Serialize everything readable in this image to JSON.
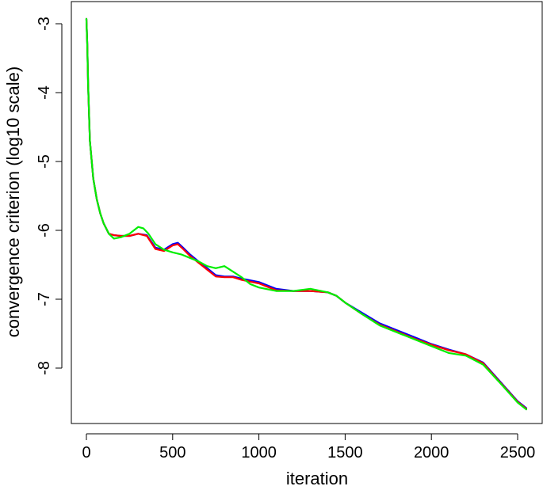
{
  "chart_data": {
    "type": "line",
    "title": "",
    "xlabel": "iteration",
    "ylabel": "convergence criterion (log10 scale)",
    "xlim": [
      0,
      2560
    ],
    "ylim": [
      -8.6,
      -2.85
    ],
    "x_ticks": [
      0,
      500,
      1000,
      1500,
      2000,
      2500
    ],
    "x_tick_labels": [
      "0",
      "500",
      "1000",
      "1500",
      "2000",
      "2500"
    ],
    "y_ticks": [
      -3,
      -4,
      -5,
      -6,
      -7,
      -8
    ],
    "y_tick_labels": [
      "-3",
      "-4",
      "-5",
      "-6",
      "-7",
      "-8"
    ],
    "grid": false,
    "legend": "none",
    "series": [
      {
        "color": "#0000ff",
        "x": [
          0,
          5,
          10,
          20,
          40,
          60,
          80,
          100,
          130,
          160,
          200,
          250,
          300,
          350,
          400,
          450,
          500,
          530,
          560,
          600,
          650,
          700,
          750,
          800,
          850,
          900,
          1000,
          1100,
          1200,
          1300,
          1400,
          1450,
          1500,
          1600,
          1700,
          1800,
          1900,
          2000,
          2100,
          2200,
          2300,
          2400,
          2500,
          2550
        ],
        "y": [
          -2.93,
          -3.3,
          -3.9,
          -4.7,
          -5.25,
          -5.55,
          -5.75,
          -5.9,
          -6.05,
          -6.07,
          -6.08,
          -6.08,
          -6.05,
          -6.07,
          -6.25,
          -6.28,
          -6.2,
          -6.18,
          -6.25,
          -6.35,
          -6.45,
          -6.55,
          -6.65,
          -6.67,
          -6.67,
          -6.7,
          -6.75,
          -6.85,
          -6.88,
          -6.88,
          -6.9,
          -6.95,
          -7.05,
          -7.2,
          -7.35,
          -7.45,
          -7.55,
          -7.65,
          -7.73,
          -7.8,
          -7.92,
          -8.2,
          -8.48,
          -8.58
        ]
      },
      {
        "color": "#ff0000",
        "x": [
          0,
          5,
          10,
          20,
          40,
          60,
          80,
          100,
          130,
          160,
          200,
          250,
          300,
          350,
          400,
          450,
          500,
          530,
          560,
          600,
          650,
          700,
          750,
          800,
          850,
          900,
          1000,
          1100,
          1200,
          1300,
          1400,
          1450,
          1500,
          1600,
          1700,
          1800,
          1900,
          2000,
          2100,
          2200,
          2300,
          2400,
          2500,
          2550
        ],
        "y": [
          -2.93,
          -3.3,
          -3.9,
          -4.7,
          -5.25,
          -5.55,
          -5.75,
          -5.9,
          -6.05,
          -6.07,
          -6.08,
          -6.08,
          -6.05,
          -6.08,
          -6.27,
          -6.3,
          -6.22,
          -6.2,
          -6.27,
          -6.37,
          -6.47,
          -6.57,
          -6.67,
          -6.68,
          -6.68,
          -6.72,
          -6.77,
          -6.87,
          -6.88,
          -6.88,
          -6.9,
          -6.95,
          -7.05,
          -7.22,
          -7.37,
          -7.47,
          -7.57,
          -7.66,
          -7.74,
          -7.8,
          -7.93,
          -8.21,
          -8.49,
          -8.59
        ]
      },
      {
        "color": "#00ee00",
        "x": [
          0,
          5,
          10,
          20,
          40,
          60,
          80,
          100,
          130,
          160,
          200,
          250,
          300,
          330,
          360,
          400,
          450,
          500,
          550,
          600,
          650,
          700,
          750,
          800,
          850,
          900,
          950,
          1000,
          1100,
          1200,
          1300,
          1400,
          1450,
          1500,
          1600,
          1700,
          1800,
          1900,
          2000,
          2100,
          2200,
          2300,
          2400,
          2500,
          2550
        ],
        "y": [
          -2.93,
          -3.3,
          -3.9,
          -4.7,
          -5.25,
          -5.55,
          -5.75,
          -5.9,
          -6.05,
          -6.12,
          -6.1,
          -6.05,
          -5.95,
          -5.97,
          -6.05,
          -6.2,
          -6.28,
          -6.32,
          -6.35,
          -6.4,
          -6.45,
          -6.52,
          -6.55,
          -6.52,
          -6.6,
          -6.68,
          -6.78,
          -6.83,
          -6.88,
          -6.88,
          -6.85,
          -6.9,
          -6.95,
          -7.05,
          -7.22,
          -7.38,
          -7.48,
          -7.58,
          -7.68,
          -7.78,
          -7.82,
          -7.95,
          -8.22,
          -8.5,
          -8.6
        ]
      }
    ]
  }
}
